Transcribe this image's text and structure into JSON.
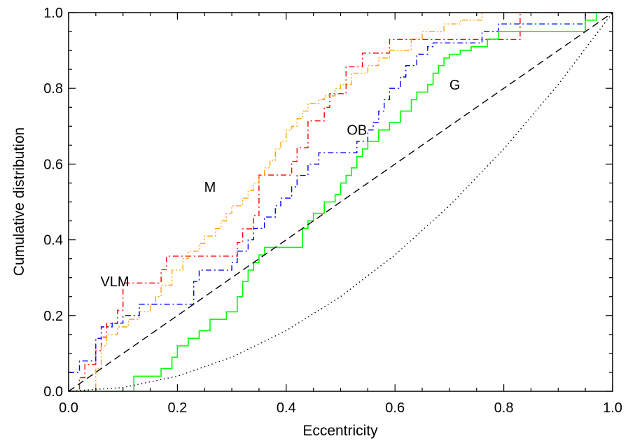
{
  "chart_data": {
    "type": "line",
    "xlabel": "Eccentricity",
    "ylabel": "Cumulative distribution",
    "xlim": [
      0.0,
      1.0
    ],
    "ylim": [
      0.0,
      1.0
    ],
    "xticks": [
      "0.0",
      "0.2",
      "0.4",
      "0.6",
      "0.8",
      "1.0"
    ],
    "yticks": [
      "0.0",
      "0.2",
      "0.4",
      "0.6",
      "0.8",
      "1.0"
    ],
    "grid": false,
    "annotations": [
      {
        "text": "VLM",
        "x": 0.085,
        "y": 0.29
      },
      {
        "text": "M",
        "x": 0.26,
        "y": 0.54
      },
      {
        "text": "OB",
        "x": 0.53,
        "y": 0.69
      },
      {
        "text": "G",
        "x": 0.71,
        "y": 0.81
      }
    ],
    "series": [
      {
        "name": "VLM",
        "color": "#ff0000",
        "style": "dashdot",
        "step": true,
        "x": [
          0.0,
          0.02,
          0.03,
          0.05,
          0.06,
          0.07,
          0.09,
          0.1,
          0.17,
          0.18,
          0.31,
          0.32,
          0.34,
          0.35,
          0.41,
          0.42,
          0.44,
          0.47,
          0.48,
          0.51,
          0.54,
          0.59,
          0.83,
          1.0
        ],
        "y": [
          0.0,
          0.036,
          0.071,
          0.107,
          0.143,
          0.179,
          0.214,
          0.286,
          0.321,
          0.357,
          0.393,
          0.429,
          0.464,
          0.571,
          0.607,
          0.643,
          0.714,
          0.75,
          0.786,
          0.857,
          0.893,
          0.929,
          1.0,
          1.0
        ]
      },
      {
        "name": "M",
        "color": "#ffa500",
        "style": "dashdotdot",
        "step": true,
        "x": [
          0.0,
          0.05,
          0.06,
          0.07,
          0.09,
          0.11,
          0.13,
          0.15,
          0.16,
          0.17,
          0.19,
          0.21,
          0.22,
          0.24,
          0.25,
          0.27,
          0.28,
          0.29,
          0.3,
          0.32,
          0.33,
          0.34,
          0.35,
          0.36,
          0.37,
          0.38,
          0.39,
          0.4,
          0.41,
          0.42,
          0.43,
          0.44,
          0.46,
          0.47,
          0.49,
          0.5,
          0.52,
          0.55,
          0.57,
          0.59,
          0.63,
          0.65,
          0.69,
          0.72,
          0.76,
          1.0
        ],
        "y": [
          0.0,
          0.06,
          0.12,
          0.15,
          0.17,
          0.19,
          0.21,
          0.23,
          0.25,
          0.28,
          0.32,
          0.35,
          0.37,
          0.39,
          0.41,
          0.43,
          0.45,
          0.47,
          0.49,
          0.51,
          0.53,
          0.55,
          0.57,
          0.59,
          0.61,
          0.64,
          0.66,
          0.69,
          0.7,
          0.72,
          0.74,
          0.76,
          0.77,
          0.78,
          0.8,
          0.81,
          0.84,
          0.86,
          0.88,
          0.9,
          0.93,
          0.95,
          0.97,
          0.98,
          1.0,
          1.0
        ]
      },
      {
        "name": "OB",
        "color": "#0000ff",
        "style": "dashdot",
        "step": true,
        "x": [
          0.0,
          0.02,
          0.05,
          0.06,
          0.08,
          0.1,
          0.13,
          0.23,
          0.24,
          0.3,
          0.31,
          0.33,
          0.34,
          0.36,
          0.38,
          0.39,
          0.41,
          0.42,
          0.44,
          0.46,
          0.47,
          0.49,
          0.53,
          0.55,
          0.56,
          0.57,
          0.58,
          0.59,
          0.61,
          0.62,
          0.64,
          0.66,
          0.67,
          0.68,
          0.76,
          0.79,
          0.9,
          0.95,
          1.0
        ],
        "y": [
          0.05,
          0.08,
          0.14,
          0.17,
          0.18,
          0.2,
          0.23,
          0.29,
          0.32,
          0.34,
          0.37,
          0.4,
          0.43,
          0.46,
          0.49,
          0.51,
          0.54,
          0.57,
          0.6,
          0.63,
          0.63,
          0.63,
          0.66,
          0.69,
          0.71,
          0.74,
          0.77,
          0.8,
          0.83,
          0.86,
          0.89,
          0.91,
          0.92,
          0.92,
          0.95,
          0.97,
          0.97,
          1.0,
          1.0
        ]
      },
      {
        "name": "G",
        "color": "#00ff00",
        "style": "solid",
        "step": true,
        "x": [
          0.0,
          0.12,
          0.17,
          0.19,
          0.2,
          0.22,
          0.24,
          0.26,
          0.29,
          0.31,
          0.32,
          0.33,
          0.34,
          0.35,
          0.36,
          0.37,
          0.38,
          0.43,
          0.44,
          0.45,
          0.47,
          0.49,
          0.5,
          0.51,
          0.52,
          0.53,
          0.54,
          0.55,
          0.57,
          0.59,
          0.61,
          0.63,
          0.64,
          0.66,
          0.67,
          0.68,
          0.69,
          0.7,
          0.72,
          0.74,
          0.77,
          0.79,
          0.95,
          0.97,
          1.0
        ],
        "y": [
          0.0,
          0.04,
          0.06,
          0.09,
          0.12,
          0.14,
          0.16,
          0.19,
          0.21,
          0.25,
          0.29,
          0.32,
          0.34,
          0.36,
          0.38,
          0.38,
          0.38,
          0.43,
          0.45,
          0.47,
          0.5,
          0.52,
          0.55,
          0.57,
          0.59,
          0.62,
          0.64,
          0.66,
          0.69,
          0.71,
          0.74,
          0.77,
          0.79,
          0.81,
          0.84,
          0.86,
          0.88,
          0.89,
          0.9,
          0.91,
          0.93,
          0.95,
          0.98,
          1.0,
          1.0
        ]
      },
      {
        "name": "",
        "color": "#000000",
        "style": "dashed",
        "step": false,
        "x": [
          0.0,
          1.0
        ],
        "y": [
          0.0,
          1.0
        ]
      },
      {
        "name": "",
        "color": "#000000",
        "style": "dotted",
        "step": false,
        "x": [
          0.0,
          0.1,
          0.2,
          0.3,
          0.4,
          0.5,
          0.6,
          0.7,
          0.8,
          0.9,
          1.0
        ],
        "y": [
          0.0,
          0.01,
          0.04,
          0.09,
          0.16,
          0.25,
          0.36,
          0.49,
          0.64,
          0.81,
          1.0
        ]
      }
    ]
  }
}
